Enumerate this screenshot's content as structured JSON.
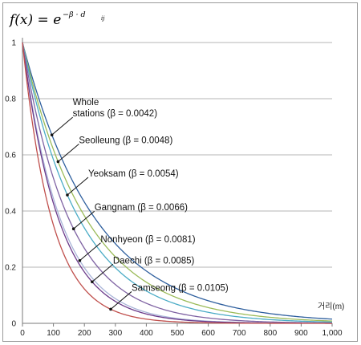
{
  "chart_data": {
    "type": "line",
    "title_main": "f(x) = e",
    "title_sup": "−β · d",
    "title_sub": "ij",
    "xlabel": "거리(m)",
    "ylabel": "",
    "xlim": [
      0,
      1000
    ],
    "ylim": [
      0,
      1
    ],
    "x_ticks": [
      "0",
      "100",
      "200",
      "300",
      "400",
      "500",
      "600",
      "700",
      "800",
      "900",
      "1,000"
    ],
    "y_ticks": [
      "0",
      "0.2",
      "0.4",
      "0.6",
      "0.8",
      "1"
    ],
    "grid": "horizontal",
    "series": [
      {
        "name": "Whole stations",
        "beta": 0.0042,
        "color": "#2e5f9e",
        "label_lines": [
          "Whole",
          "stations (β = 0.0042)"
        ],
        "point_x": 95
      },
      {
        "name": "Seolleung",
        "beta": 0.0048,
        "color": "#9bbb59",
        "label_lines": [
          "Seolleung (β = 0.0048)"
        ],
        "point_x": 115
      },
      {
        "name": "Yeoksam",
        "beta": 0.0054,
        "color": "#4bacc6",
        "label_lines": [
          "Yeoksam (β = 0.0054)"
        ],
        "point_x": 145
      },
      {
        "name": "Gangnam",
        "beta": 0.0066,
        "color": "#7f63a3",
        "label_lines": [
          "Gangnam (β = 0.0066)"
        ],
        "point_x": 165
      },
      {
        "name": "Nonhyeon",
        "beta": 0.0081,
        "color": "#a9b4d8",
        "label_lines": [
          "Nonhyeon (β = 0.0081)"
        ],
        "point_x": 185
      },
      {
        "name": "Daechi",
        "beta": 0.0085,
        "color": "#6b3a8a",
        "label_lines": [
          "Daechi (β = 0.0085)"
        ],
        "point_x": 225
      },
      {
        "name": "Samseong",
        "beta": 0.0105,
        "color": "#c0504d",
        "label_lines": [
          "Samseong (β = 0.0105)"
        ],
        "point_x": 285
      }
    ]
  }
}
